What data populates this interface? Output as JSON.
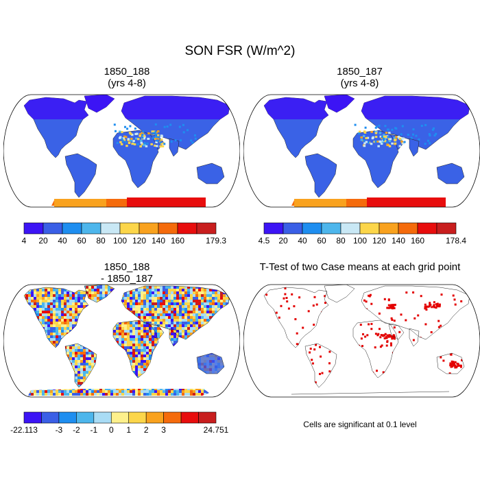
{
  "title": "SON FSR (W/m^2)",
  "palettes": {
    "abs": [
      "#3c14f5",
      "#3a5fe6",
      "#1e8ef0",
      "#4db6ec",
      "#c9e8f5",
      "#fcd64a",
      "#f9a21e",
      "#f56b0c",
      "#e80d0d",
      "#c81e1e"
    ],
    "diff": [
      "#3c14f5",
      "#3a5fe6",
      "#1e8ef0",
      "#4db6ec",
      "#a9dcf5",
      "#fdf08c",
      "#fcd64a",
      "#f9a21e",
      "#f56b0c",
      "#e80d0d",
      "#c81e1e"
    ],
    "sig": "#e30000",
    "land": "#3a62e6",
    "ocean": "#ffffff"
  },
  "panels": [
    {
      "title_line1": "1850_188",
      "title_line2": "(yrs 4-8)",
      "type": "absolute",
      "colorbar": {
        "labels": [
          "4",
          "20",
          "40",
          "60",
          "80",
          "100",
          "120",
          "140",
          "160",
          "179.3"
        ]
      }
    },
    {
      "title_line1": "1850_187",
      "title_line2": "(yrs 4-8)",
      "type": "absolute",
      "colorbar": {
        "labels": [
          "4.5",
          "20",
          "40",
          "60",
          "80",
          "100",
          "120",
          "140",
          "160",
          "178.4"
        ]
      }
    },
    {
      "title_line1": "1850_188",
      "title_line2": "- 1850_187",
      "type": "difference",
      "colorbar": {
        "labels": [
          "-22.113",
          "",
          "-3",
          "-2",
          "-1",
          "0",
          "1",
          "2",
          "3",
          "",
          "24.751"
        ]
      }
    },
    {
      "title_line1": "T-Test of two Case means at each grid point",
      "title_line2": "",
      "type": "significance",
      "note": "Cells are significant at 0.1 level"
    }
  ]
}
